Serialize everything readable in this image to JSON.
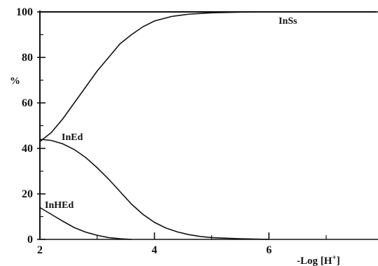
{
  "chart_data": {
    "type": "line",
    "xlabel": "-Log [H",
    "xlabel_sup": "+",
    "xlabel_close": "]",
    "ylabel": "%",
    "xlim": [
      2,
      8
    ],
    "ylim": [
      0,
      100
    ],
    "x_ticks": [
      2,
      4,
      6
    ],
    "y_ticks": [
      0,
      20,
      40,
      60,
      80,
      100
    ],
    "grid": false,
    "series": [
      {
        "name": "InSs",
        "points": [
          [
            2.0,
            43
          ],
          [
            2.2,
            47
          ],
          [
            2.4,
            53
          ],
          [
            2.6,
            60
          ],
          [
            2.8,
            67
          ],
          [
            3.0,
            74
          ],
          [
            3.2,
            80
          ],
          [
            3.4,
            86
          ],
          [
            3.6,
            90
          ],
          [
            3.8,
            93.5
          ],
          [
            4.0,
            96
          ],
          [
            4.3,
            98
          ],
          [
            4.6,
            99
          ],
          [
            5.0,
            99.6
          ],
          [
            5.5,
            99.9
          ],
          [
            6.0,
            100
          ],
          [
            7.0,
            100
          ],
          [
            8.0,
            100
          ]
        ]
      },
      {
        "name": "InEd",
        "points": [
          [
            2.0,
            44
          ],
          [
            2.2,
            43.5
          ],
          [
            2.4,
            42
          ],
          [
            2.6,
            39.5
          ],
          [
            2.8,
            36
          ],
          [
            3.0,
            31.5
          ],
          [
            3.2,
            26.5
          ],
          [
            3.4,
            21
          ],
          [
            3.6,
            15.5
          ],
          [
            3.8,
            11
          ],
          [
            4.0,
            7.5
          ],
          [
            4.2,
            5
          ],
          [
            4.4,
            3.3
          ],
          [
            4.6,
            2.1
          ],
          [
            4.8,
            1.3
          ],
          [
            5.0,
            0.8
          ],
          [
            5.5,
            0.3
          ],
          [
            6.0,
            0
          ]
        ]
      },
      {
        "name": "InHEd",
        "points": [
          [
            2.0,
            14
          ],
          [
            2.2,
            11
          ],
          [
            2.4,
            8
          ],
          [
            2.6,
            5.2
          ],
          [
            2.8,
            3.2
          ],
          [
            3.0,
            1.8
          ],
          [
            3.2,
            0.8
          ],
          [
            3.4,
            0.3
          ],
          [
            3.6,
            0
          ]
        ]
      },
      {
        "name": "",
        "points": [
          [
            2.0,
            0
          ],
          [
            8.0,
            0
          ]
        ]
      }
    ]
  }
}
